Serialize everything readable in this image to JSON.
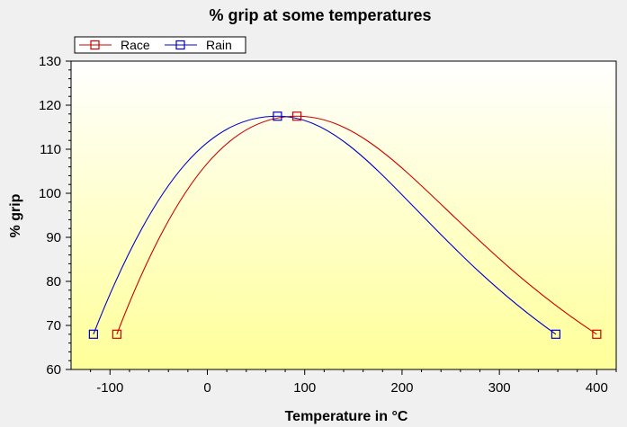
{
  "chart_data": {
    "type": "line",
    "title": "% grip at some temperatures",
    "xlabel": "Temperature in °C",
    "ylabel": "% grip",
    "xlim": [
      -140,
      420
    ],
    "ylim": [
      60,
      130
    ],
    "x_ticks": [
      -100,
      0,
      100,
      200,
      300,
      400
    ],
    "y_ticks": [
      60,
      70,
      80,
      90,
      100,
      110,
      120,
      130
    ],
    "grid": false,
    "legend_position": "top-left",
    "background_gradient": [
      "#ffffff",
      "#ffff99"
    ],
    "series": [
      {
        "name": "Race",
        "color": "#cc0000",
        "marker": "square",
        "smooth": true,
        "points": [
          {
            "x": -93,
            "y": 68
          },
          {
            "x": 92,
            "y": 117.5
          },
          {
            "x": 400,
            "y": 68
          }
        ]
      },
      {
        "name": "Rain",
        "color": "#0000cc",
        "marker": "square",
        "smooth": true,
        "points": [
          {
            "x": -117,
            "y": 68
          },
          {
            "x": 72,
            "y": 117.5
          },
          {
            "x": 358,
            "y": 68
          }
        ]
      }
    ]
  }
}
